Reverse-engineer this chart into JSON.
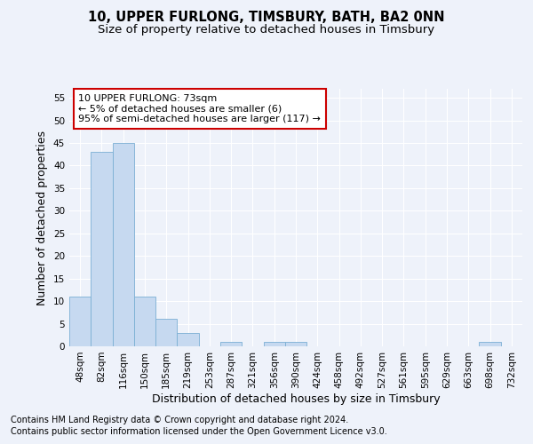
{
  "title": "10, UPPER FURLONG, TIMSBURY, BATH, BA2 0NN",
  "subtitle": "Size of property relative to detached houses in Timsbury",
  "xlabel": "Distribution of detached houses by size in Timsbury",
  "ylabel": "Number of detached properties",
  "categories": [
    "48sqm",
    "82sqm",
    "116sqm",
    "150sqm",
    "185sqm",
    "219sqm",
    "253sqm",
    "287sqm",
    "321sqm",
    "356sqm",
    "390sqm",
    "424sqm",
    "458sqm",
    "492sqm",
    "527sqm",
    "561sqm",
    "595sqm",
    "629sqm",
    "663sqm",
    "698sqm",
    "732sqm"
  ],
  "values": [
    11,
    43,
    45,
    11,
    6,
    3,
    0,
    1,
    0,
    1,
    1,
    0,
    0,
    0,
    0,
    0,
    0,
    0,
    0,
    1,
    0
  ],
  "bar_color": "#c6d9f0",
  "bar_edge_color": "#7bafd4",
  "ylim": [
    0,
    57
  ],
  "yticks": [
    0,
    5,
    10,
    15,
    20,
    25,
    30,
    35,
    40,
    45,
    50,
    55
  ],
  "annotation_line1": "10 UPPER FURLONG: 73sqm",
  "annotation_line2": "← 5% of detached houses are smaller (6)",
  "annotation_line3": "95% of semi-detached houses are larger (117) →",
  "annotation_box_color": "#ffffff",
  "annotation_box_edge_color": "#cc0000",
  "footer_line1": "Contains HM Land Registry data © Crown copyright and database right 2024.",
  "footer_line2": "Contains public sector information licensed under the Open Government Licence v3.0.",
  "background_color": "#eef2fa",
  "grid_color": "#ffffff",
  "title_fontsize": 10.5,
  "subtitle_fontsize": 9.5,
  "axis_label_fontsize": 9,
  "tick_fontsize": 7.5,
  "annotation_fontsize": 8,
  "footer_fontsize": 7
}
